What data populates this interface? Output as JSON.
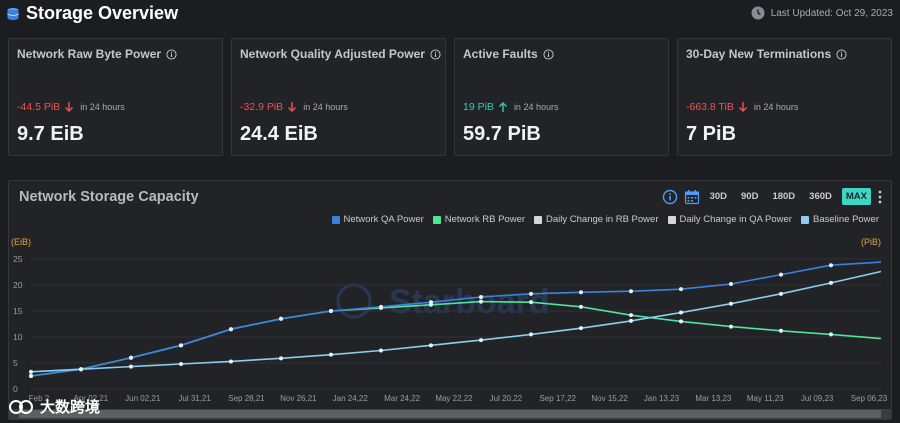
{
  "header": {
    "title": "Storage Overview",
    "last_updated": "Last Updated: Oct 29, 2023"
  },
  "cards": [
    {
      "title": "Network Raw Byte Power",
      "delta": "-44.5 PiB",
      "direction": "down",
      "period": "in 24 hours",
      "value": "9.7 EiB"
    },
    {
      "title": "Network Quality Adjusted Power",
      "delta": "-32.9 PiB",
      "direction": "down",
      "period": "in 24 hours",
      "value": "24.4 EiB"
    },
    {
      "title": "Active Faults",
      "delta": "19 PiB",
      "direction": "up",
      "period": "in 24 hours",
      "value": "59.7 PiB"
    },
    {
      "title": "30-Day New Terminations",
      "delta": "-663.8 TiB",
      "direction": "down",
      "period": "in 24 hours",
      "value": "7 PiB"
    }
  ],
  "panel": {
    "title": "Network Storage Capacity",
    "ranges": [
      "30D",
      "90D",
      "180D",
      "360D",
      "MAX"
    ],
    "active_range": "MAX"
  },
  "watermark": {
    "chart_text": "Starboard",
    "corner_text": "大数跨境"
  },
  "colors": {
    "qa": "#3b82e0",
    "rb": "#4ee49a",
    "baseline": "#8ecdf0",
    "accent": "#3cd6c3",
    "negative": "#ef5350",
    "positive": "#35c9b3"
  },
  "chart_data": {
    "type": "line",
    "left_axis_label": "(EiB)",
    "right_axis_label": "(PiB)",
    "ylim": [
      0,
      25
    ],
    "yticks": [
      0,
      5,
      10,
      15,
      20,
      25
    ],
    "xticks": [
      "Feb 2",
      "Apr 02,21",
      "Jun 02,21",
      "Jul 31,21",
      "Sep 28,21",
      "Nov 26,21",
      "Jan 24,22",
      "Mar 24,22",
      "May 22,22",
      "Jul 20,22",
      "Sep 17,22",
      "Nov 15,22",
      "Jan 13,23",
      "Mar 13,23",
      "May 11,23",
      "Jul 09,23",
      "Sep 06,23"
    ],
    "legend": [
      {
        "name": "Network QA Power",
        "color": "#3b82e0"
      },
      {
        "name": "Network RB Power",
        "color": "#4ee49a"
      },
      {
        "name": "Daily Change in RB Power",
        "color": "#d6d6d6"
      },
      {
        "name": "Daily Change in QA Power",
        "color": "#d6d6d6"
      },
      {
        "name": "Baseline Power",
        "color": "#8ecdf0"
      }
    ],
    "series": [
      {
        "name": "Network RB Power",
        "color": "#4ee49a",
        "values": [
          2.5,
          3.8,
          6,
          8.4,
          11.5,
          13.5,
          15,
          15.6,
          16.2,
          16.8,
          16.7,
          15.8,
          14.2,
          13,
          12,
          11.2,
          10.5,
          9.7
        ]
      },
      {
        "name": "Network QA Power",
        "color": "#3b82e0",
        "values": [
          2.5,
          3.8,
          6,
          8.4,
          11.5,
          13.5,
          15,
          15.8,
          16.7,
          17.7,
          18.3,
          18.6,
          18.8,
          19.2,
          20.2,
          22,
          23.8,
          24.4
        ]
      },
      {
        "name": "Baseline Power",
        "color": "#8ecdf0",
        "values": [
          3.3,
          3.8,
          4.3,
          4.8,
          5.3,
          5.9,
          6.6,
          7.4,
          8.4,
          9.4,
          10.5,
          11.7,
          13.1,
          14.7,
          16.4,
          18.3,
          20.4,
          22.6
        ]
      }
    ]
  }
}
